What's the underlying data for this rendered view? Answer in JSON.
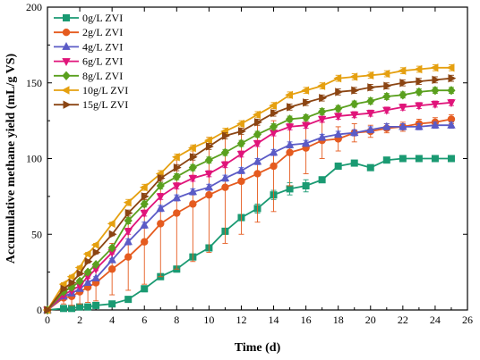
{
  "chart_data": {
    "type": "line",
    "title": "",
    "xlabel": "Time (d)",
    "ylabel": "Accumulative methane yield (mL/g VS)",
    "xlim": [
      0,
      26
    ],
    "ylim": [
      0,
      200
    ],
    "xticks": [
      0,
      2,
      4,
      6,
      8,
      10,
      12,
      14,
      16,
      18,
      20,
      22,
      24,
      26
    ],
    "yticks": [
      0,
      50,
      100,
      150,
      200
    ],
    "grid": false,
    "legend_position": "top-left",
    "x": [
      0,
      1,
      1.5,
      2,
      2.5,
      3,
      4,
      5,
      6,
      7,
      8,
      9,
      10,
      11,
      12,
      13,
      14,
      15,
      16,
      17,
      18,
      19,
      20,
      21,
      22,
      23,
      24,
      25
    ],
    "series": [
      {
        "name": "0g/L ZVI",
        "color": "#1a9a72",
        "marker": "square",
        "values": [
          0,
          1,
          1,
          2,
          2,
          3,
          4,
          7,
          14,
          22,
          27,
          35,
          41,
          52,
          61,
          67,
          76,
          80,
          82,
          86,
          95,
          97,
          94,
          99,
          100,
          100,
          100,
          100
        ],
        "errors": [
          0,
          0,
          0,
          0,
          0,
          0,
          0,
          1,
          2,
          2,
          2,
          2,
          2,
          2,
          2,
          3,
          3,
          4,
          4,
          0,
          1,
          1,
          1,
          1,
          0,
          0,
          0,
          0
        ]
      },
      {
        "name": "2g/L ZVI",
        "color": "#e55b1f",
        "marker": "circle",
        "values": [
          0,
          8,
          9,
          12,
          15,
          18,
          27,
          35,
          45,
          57,
          64,
          70,
          76,
          81,
          85,
          90,
          95,
          104,
          107,
          112,
          113,
          117,
          118,
          120,
          121,
          123,
          124,
          126
        ],
        "errors": [
          0,
          4,
          6,
          8,
          10,
          12,
          17,
          22,
          28,
          35,
          37,
          38,
          38,
          37,
          35,
          32,
          30,
          22,
          17,
          12,
          8,
          6,
          4,
          3,
          3,
          3,
          3,
          3
        ]
      },
      {
        "name": "4g/L ZVI",
        "color": "#5b5bc6",
        "marker": "triangle-up",
        "values": [
          0,
          9,
          11,
          14,
          18,
          21,
          33,
          45,
          56,
          67,
          74,
          78,
          81,
          87,
          92,
          98,
          104,
          109,
          110,
          114,
          116,
          117,
          119,
          121,
          121,
          121,
          122,
          122
        ],
        "errors": [
          0,
          1,
          1,
          1,
          1,
          1,
          1,
          2,
          2,
          2,
          2,
          2,
          2,
          2,
          2,
          2,
          2,
          2,
          2,
          2,
          2,
          2,
          2,
          2,
          2,
          2,
          2,
          2
        ]
      },
      {
        "name": "6g/L ZVI",
        "color": "#e0147a",
        "marker": "triangle-down",
        "values": [
          0,
          10,
          13,
          16,
          22,
          27,
          38,
          52,
          64,
          75,
          82,
          87,
          90,
          96,
          103,
          110,
          117,
          121,
          122,
          126,
          128,
          129,
          130,
          132,
          134,
          135,
          136,
          137
        ],
        "errors": [
          0,
          1,
          1,
          1,
          1,
          1,
          1,
          2,
          2,
          2,
          2,
          2,
          2,
          2,
          2,
          2,
          2,
          2,
          2,
          2,
          2,
          2,
          2,
          2,
          2,
          2,
          2,
          2
        ]
      },
      {
        "name": "8g/L ZVI",
        "color": "#5aa01e",
        "marker": "diamond",
        "values": [
          0,
          12,
          15,
          19,
          25,
          30,
          41,
          59,
          70,
          82,
          88,
          94,
          99,
          104,
          110,
          116,
          121,
          126,
          127,
          131,
          133,
          136,
          138,
          141,
          142,
          144,
          145,
          145
        ],
        "errors": [
          0,
          1,
          1,
          1,
          1,
          1,
          1,
          2,
          2,
          2,
          2,
          2,
          2,
          2,
          2,
          2,
          2,
          2,
          2,
          2,
          2,
          2,
          2,
          2,
          2,
          2,
          2,
          2
        ]
      },
      {
        "name": "10g/L ZVI",
        "color": "#e5a010",
        "marker": "triangle-left",
        "values": [
          0,
          17,
          22,
          28,
          37,
          43,
          57,
          71,
          81,
          90,
          101,
          107,
          112,
          118,
          123,
          129,
          135,
          142,
          145,
          148,
          153,
          154,
          155,
          156,
          158,
          159,
          160,
          160
        ],
        "errors": [
          0,
          1,
          1,
          1,
          1,
          1,
          1,
          2,
          2,
          2,
          2,
          2,
          2,
          2,
          2,
          2,
          2,
          2,
          2,
          2,
          2,
          2,
          2,
          2,
          2,
          2,
          2,
          2
        ]
      },
      {
        "name": "15g/L ZVI",
        "color": "#8b4513",
        "marker": "triangle-right",
        "values": [
          0,
          14,
          18,
          24,
          32,
          38,
          50,
          64,
          75,
          87,
          94,
          101,
          108,
          115,
          118,
          124,
          130,
          134,
          137,
          140,
          144,
          145,
          147,
          148,
          150,
          151,
          152,
          153
        ],
        "errors": [
          0,
          1,
          1,
          1,
          1,
          1,
          1,
          2,
          2,
          2,
          2,
          2,
          2,
          2,
          2,
          2,
          2,
          2,
          2,
          2,
          2,
          2,
          2,
          2,
          2,
          2,
          2,
          2
        ]
      }
    ]
  }
}
